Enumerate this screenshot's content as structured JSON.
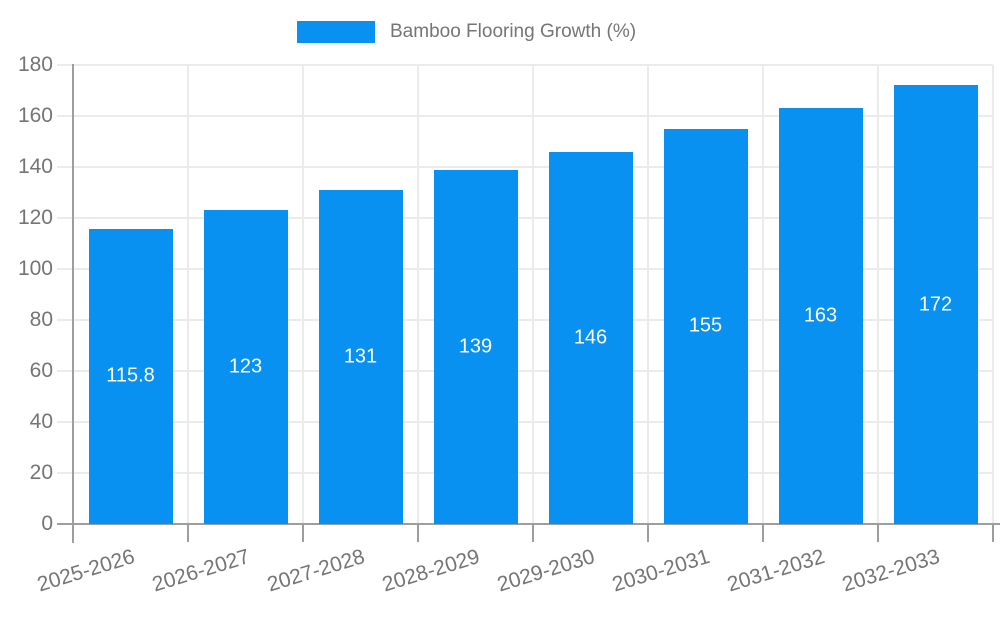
{
  "chart_data": {
    "type": "bar",
    "title": "",
    "legend": {
      "label": "Bamboo Flooring Growth (%)",
      "position": "top-center"
    },
    "categories": [
      "2025-2026",
      "2026-2027",
      "2027-2028",
      "2028-2029",
      "2029-2030",
      "2030-2031",
      "2031-2032",
      "2032-2033"
    ],
    "values": [
      115.8,
      123,
      131,
      139,
      146,
      155,
      163,
      172
    ],
    "value_labels": [
      "115.8",
      "123",
      "131",
      "139",
      "146",
      "155",
      "163",
      "172"
    ],
    "xlabel": "",
    "ylabel": "",
    "ylim": [
      0,
      180
    ],
    "yticks": [
      0,
      20,
      40,
      60,
      80,
      100,
      120,
      140,
      160,
      180
    ],
    "grid": true,
    "vertical_grid": true,
    "x_tick_label_rotation_deg": -17,
    "colors": {
      "bar": "#0991f2",
      "axis_text": "#757575",
      "value_text": "#ffffff",
      "gridline": "#ebebeb",
      "axis_line": "#9e9e9e",
      "background": "#ffffff"
    }
  }
}
